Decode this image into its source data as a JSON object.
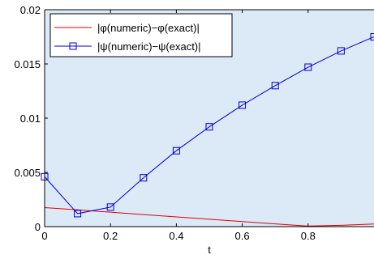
{
  "chart_data": {
    "type": "line",
    "xlabel": "t",
    "ylabel": "",
    "xlim": [
      0,
      1
    ],
    "ylim": [
      0,
      0.02
    ],
    "x_ticks": [
      0,
      0.2,
      0.4,
      0.6,
      0.8
    ],
    "x_tick_labels": [
      "0",
      "0.2",
      "0.4",
      "0.6",
      "0.8"
    ],
    "y_ticks": [
      0,
      0.005,
      0.01,
      0.015,
      0.02
    ],
    "y_tick_labels": [
      "0",
      "0.005",
      "0.01",
      "0.015",
      "0.02"
    ],
    "grid": false,
    "legend_position": "top-left",
    "plot_background": "#dce9f7",
    "series": [
      {
        "name": "|φ(numeric)−φ(exact)|",
        "color": "#e00000",
        "marker": "none",
        "x": [
          0,
          0.1,
          0.2,
          0.3,
          0.4,
          0.5,
          0.6,
          0.7,
          0.8,
          0.9,
          1.0
        ],
        "y": [
          0.00175,
          0.00155,
          0.00133,
          0.00111,
          0.0009,
          0.00068,
          0.00047,
          0.00025,
          5e-05,
          0.00012,
          0.00024
        ]
      },
      {
        "name": "|ψ(numeric)−ψ(exact)|",
        "color": "#0000cc",
        "marker": "square",
        "x": [
          0,
          0.1,
          0.2,
          0.3,
          0.4,
          0.5,
          0.6,
          0.7,
          0.8,
          0.9,
          1.0
        ],
        "y": [
          0.0046,
          0.0012,
          0.0018,
          0.0045,
          0.007,
          0.0092,
          0.0112,
          0.013,
          0.0147,
          0.0162,
          0.0175
        ]
      }
    ]
  }
}
